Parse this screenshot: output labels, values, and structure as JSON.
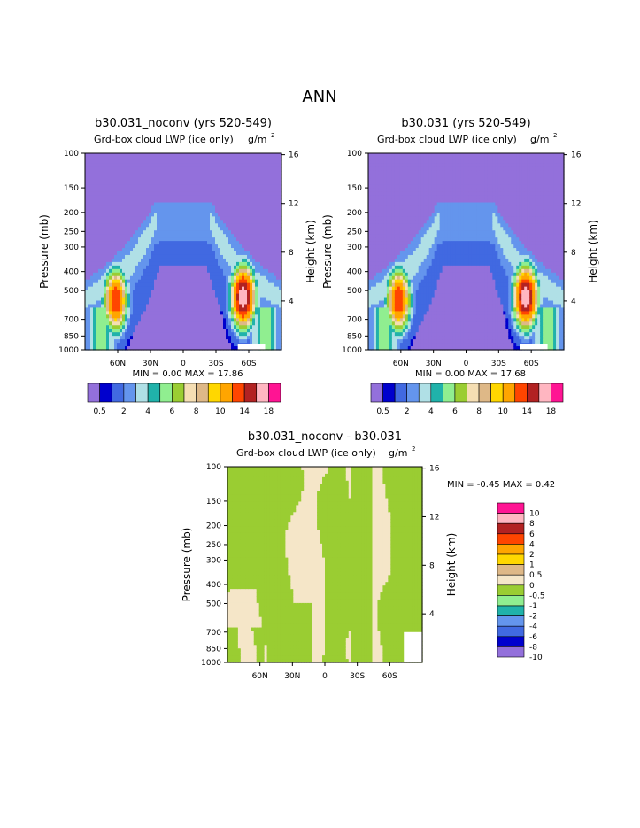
{
  "page_title": "ANN",
  "colors": {
    "fill": [
      "#9370DB",
      "#0000CD",
      "#4169E1",
      "#6495ED",
      "#B0E0E6",
      "#20B2AA",
      "#90EE90",
      "#9ACD32",
      "#F5DEB3",
      "#DEB887",
      "#FFD700",
      "#FFA500",
      "#FF4500",
      "#B22222",
      "#FFB6C1",
      "#FF1493"
    ],
    "diff_fill": [
      "#9370DB",
      "#0000CD",
      "#4169E1",
      "#6495ED",
      "#20B2AA",
      "#90EE90",
      "#9ACD32",
      "#F5E6C8",
      "#DEB887",
      "#FFD700",
      "#FFA500",
      "#FF4500",
      "#B22222",
      "#FFB6C1",
      "#FF1493"
    ]
  },
  "chart_data": [
    {
      "type": "heatmap",
      "title": "b30.031_noconv (yrs 520-549)",
      "subtitle": "Grd-box cloud LWP (ice only)",
      "units": "g/m",
      "units_sup": "2",
      "ylabel": "Pressure (mb)",
      "y2label": "Height (km)",
      "x_ticks": [
        "60N",
        "30N",
        "0",
        "30S",
        "60S"
      ],
      "y_ticks": [
        "100",
        "150",
        "200",
        "250",
        "300",
        "400",
        "500",
        "700",
        "850",
        "1000"
      ],
      "y2_ticks": [
        "16",
        "12",
        "8",
        "4"
      ],
      "min_text": "MIN =    0.00   MAX =   17.86",
      "min": 0.0,
      "max": 17.86,
      "colorbar_labels": [
        "0.5",
        "2",
        "4",
        "6",
        "8",
        "10",
        "14",
        "18"
      ],
      "colorbar_levels": [
        0.5,
        1,
        2,
        3,
        4,
        5,
        6,
        7,
        8,
        9,
        10,
        12,
        14,
        16,
        18
      ],
      "peaks": [
        {
          "lat": 62,
          "p": 560,
          "value": 14
        },
        {
          "lat": -55,
          "p": 540,
          "value": 17.86
        }
      ]
    },
    {
      "type": "heatmap",
      "title": "b30.031 (yrs 520-549)",
      "subtitle": "Grd-box cloud LWP (ice only)",
      "units": "g/m",
      "units_sup": "2",
      "ylabel": "Pressure (mb)",
      "y2label": "Height (km)",
      "x_ticks": [
        "60N",
        "30N",
        "0",
        "30S",
        "60S"
      ],
      "y_ticks": [
        "100",
        "150",
        "200",
        "250",
        "300",
        "400",
        "500",
        "700",
        "850",
        "1000"
      ],
      "y2_ticks": [
        "16",
        "12",
        "8",
        "4"
      ],
      "min_text": "MIN =    0.00   MAX =   17.68",
      "min": 0.0,
      "max": 17.68,
      "colorbar_labels": [
        "0.5",
        "2",
        "4",
        "6",
        "8",
        "10",
        "14",
        "18"
      ],
      "colorbar_levels": [
        0.5,
        1,
        2,
        3,
        4,
        5,
        6,
        7,
        8,
        9,
        10,
        12,
        14,
        16,
        18
      ],
      "peaks": [
        {
          "lat": 62,
          "p": 560,
          "value": 14
        },
        {
          "lat": -55,
          "p": 540,
          "value": 17.68
        }
      ]
    },
    {
      "type": "heatmap",
      "title": "b30.031_noconv - b30.031",
      "subtitle": "Grd-box cloud LWP (ice only)",
      "units": "g/m",
      "units_sup": "2",
      "ylabel": "Pressure (mb)",
      "y2label": "Height (km)",
      "x_ticks": [
        "60N",
        "30N",
        "0",
        "30S",
        "60S"
      ],
      "y_ticks": [
        "100",
        "150",
        "200",
        "250",
        "300",
        "400",
        "500",
        "700",
        "850",
        "1000"
      ],
      "y2_ticks": [
        "16",
        "12",
        "8",
        "4"
      ],
      "min_text": "MIN =   -0.45   MAX =    0.42",
      "min": -0.45,
      "max": 0.42,
      "colorbar_labels": [
        "10",
        "8",
        "6",
        "4",
        "2",
        "1",
        "0.5",
        "0",
        "-0.5",
        "-1",
        "-2",
        "-4",
        "-6",
        "-8",
        "-10"
      ],
      "colorbar_levels": [
        -10,
        -8,
        -6,
        -4,
        -2,
        -1,
        -0.5,
        0,
        0.5,
        1,
        2,
        4,
        6,
        8,
        10
      ]
    }
  ]
}
